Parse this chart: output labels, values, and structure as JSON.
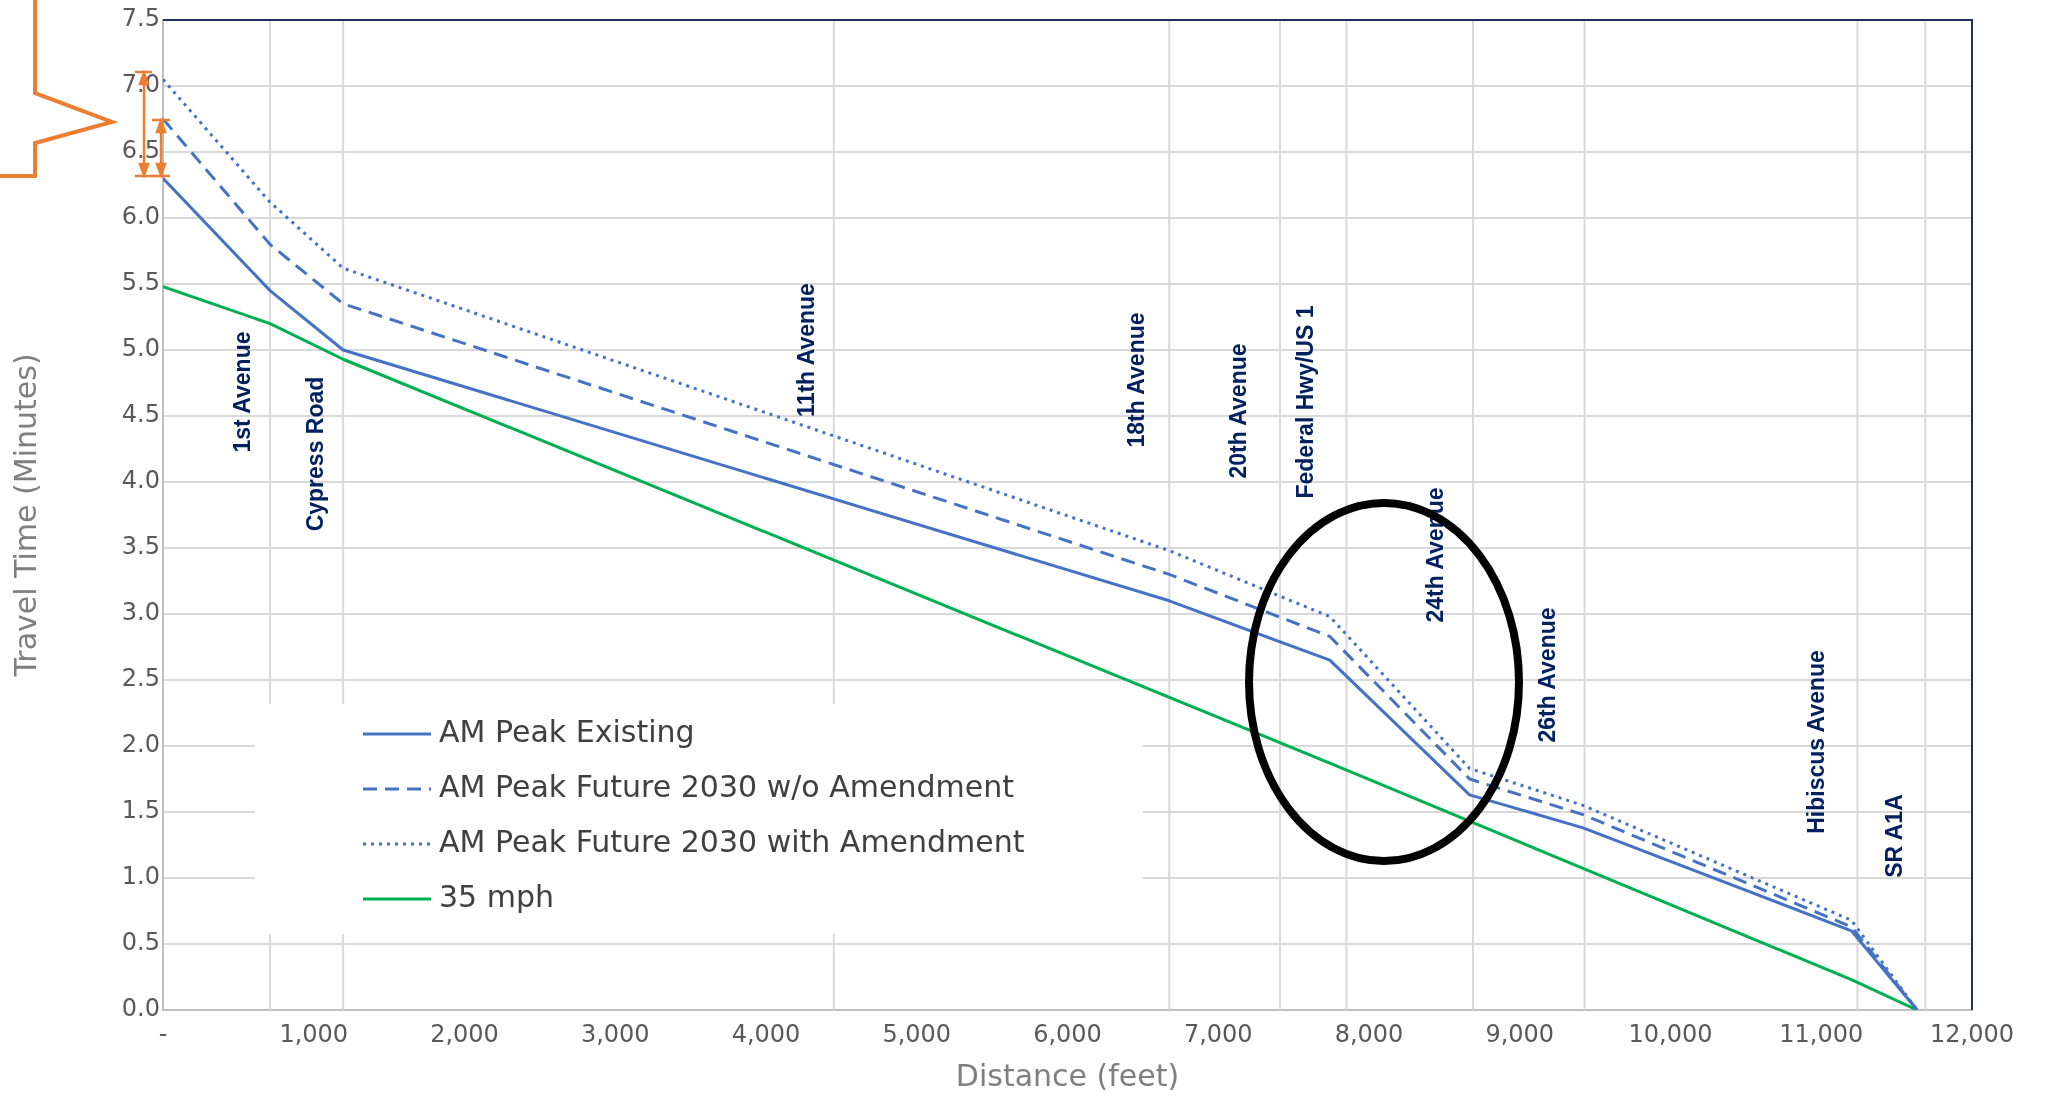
{
  "chart_data": {
    "type": "line",
    "xlabel": "Distance (feet)",
    "ylabel": "Travel Time (Minutes)",
    "x": [
      0,
      710,
      1195,
      6675,
      7740,
      8667,
      9420,
      11200,
      11636
    ],
    "series": [
      {
        "name": "AM Peak Existing",
        "color": "#4472c4",
        "line_style": "solid",
        "values": [
          6.3,
          5.45,
          5.0,
          3.1,
          2.65,
          1.63,
          1.38,
          0.6,
          0
        ]
      },
      {
        "name": "AM Peak Future 2030 w/o Amendment",
        "color": "#4472c4",
        "line_style": "dashed",
        "values": [
          6.75,
          5.8,
          5.35,
          3.3,
          2.83,
          1.75,
          1.48,
          0.63,
          0
        ]
      },
      {
        "name": "AM Peak Future 2030 with Amendment",
        "color": "#4472c4",
        "line_style": "dotted",
        "values": [
          7.05,
          6.12,
          5.62,
          3.48,
          2.98,
          1.83,
          1.55,
          0.68,
          0
        ]
      },
      {
        "name": "35 mph",
        "color": "#00b050",
        "line_style": "solid",
        "x": [
          0,
          710,
          1195,
          7740,
          11200,
          11636
        ],
        "values": [
          5.48,
          5.2,
          4.93,
          1.87,
          0.23,
          0
        ]
      }
    ],
    "xlim": [
      0,
      12000
    ],
    "xticks": [
      {
        "value": 0,
        "label": "-"
      },
      {
        "value": 1000,
        "label": "1,000"
      },
      {
        "value": 2000,
        "label": "2,000"
      },
      {
        "value": 3000,
        "label": "3,000"
      },
      {
        "value": 4000,
        "label": "4,000"
      },
      {
        "value": 5000,
        "label": "5,000"
      },
      {
        "value": 6000,
        "label": "6,000"
      },
      {
        "value": 7000,
        "label": "7,000"
      },
      {
        "value": 8000,
        "label": "8,000"
      },
      {
        "value": 9000,
        "label": "9,000"
      },
      {
        "value": 10000,
        "label": "10,000"
      },
      {
        "value": 11000,
        "label": "11,000"
      },
      {
        "value": 12000,
        "label": "12,000"
      }
    ],
    "ylim": [
      0,
      7.5
    ],
    "yticks": [
      {
        "value": 0,
        "label": "0.0"
      },
      0.5,
      {
        "value": 1,
        "label": "1.0"
      },
      1.5,
      {
        "value": 2,
        "label": "2.0"
      },
      2.5,
      {
        "value": 3,
        "label": "3.0"
      },
      3.5,
      {
        "value": 4,
        "label": "4.0"
      },
      4.5,
      {
        "value": 5,
        "label": "5.0"
      },
      5.5,
      {
        "value": 6,
        "label": "6.0"
      },
      6.5,
      {
        "value": 7,
        "label": "7.0"
      },
      7.5
    ],
    "ref_lines": [
      {
        "axis": "x",
        "value": 710,
        "color": "#d9d9d9",
        "label": "1st Avenue"
      },
      {
        "axis": "x",
        "value": 1195,
        "color": "#d9d9d9",
        "label": "Cypress Road"
      },
      {
        "axis": "x",
        "value": 4450,
        "color": "#d9d9d9",
        "label": "11th Avenue"
      },
      {
        "axis": "x",
        "value": 6675,
        "color": "#d9d9d9",
        "label": "18th Avenue"
      },
      {
        "axis": "x",
        "value": 7410,
        "color": "#d9d9d9",
        "label": "20th Avenue"
      },
      {
        "axis": "x",
        "value": 7850,
        "color": "#d9d9d9",
        "label": "Federal Hwy/US 1"
      },
      {
        "axis": "x",
        "value": 8690,
        "color": "#d9d9d9",
        "label": "24th Avenue"
      },
      {
        "axis": "x",
        "value": 9430,
        "color": "#d9d9d9",
        "label": "26th Avenue"
      },
      {
        "axis": "x",
        "value": 11240,
        "color": "#d9d9d9",
        "label": "Hibiscus Avenue"
      },
      {
        "axis": "x",
        "value": 11690,
        "color": "#d9d9d9",
        "label": "SR A1A"
      }
    ],
    "grid": "y",
    "legend": "bottom left",
    "marker": "none"
  }
}
